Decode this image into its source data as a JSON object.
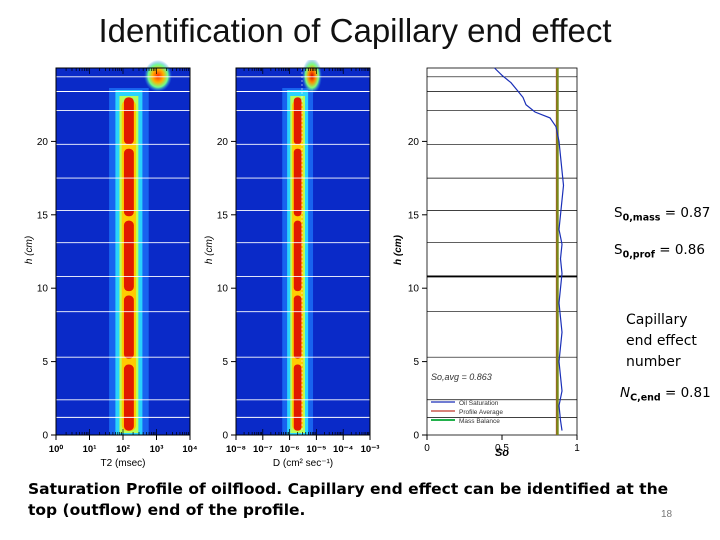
{
  "slide": {
    "title": "Identification of Capillary end effect",
    "caption": "Saturation Profile of oilflood.  Capillary end effect can be identified at the top (outflow) end of the profile.",
    "slide_number": "18"
  },
  "annotations": {
    "s0_mass_label": "S",
    "s0_mass_sub": "0,mass",
    "s0_mass_value": " = 0.87",
    "s0_prof_label": "S",
    "s0_prof_sub": "0,prof",
    "s0_prof_value": " = 0.86",
    "capillary_lines": [
      "Capillary",
      "end effect",
      "number"
    ],
    "nc_label": "N",
    "nc_sub": "C,end",
    "nc_value": " = 0.81"
  },
  "chart_data": [
    {
      "type": "heatmap",
      "xlabel": "T2 (msec)",
      "ylabel": "h (cm)",
      "x_scale": "log",
      "xlim": [
        1,
        10000
      ],
      "ylim": [
        0,
        25
      ],
      "x_tick_labels": [
        "10⁰",
        "10¹",
        "10²",
        "10³",
        "10⁴"
      ],
      "y_tick_labels": [
        "0",
        "5",
        "10",
        "15",
        "20"
      ],
      "y_ticks": [
        0,
        5,
        10,
        15,
        20
      ],
      "peak_center_x": 150,
      "top_peak_center_x": 1200,
      "grid_lines_h": [
        1.2,
        2.4,
        5.3,
        8.4,
        10.8,
        13.1,
        15.3,
        17.5,
        19.8,
        22.1,
        23.4,
        24.4
      ]
    },
    {
      "type": "heatmap",
      "xlabel": "D (cm² sec⁻¹)",
      "ylabel": "h (cm)",
      "x_scale": "log",
      "xlim": [
        -8,
        -3
      ],
      "ylim": [
        0,
        25
      ],
      "x_tick_labels": [
        "10⁻⁸",
        "10⁻⁷",
        "10⁻⁶",
        "10⁻⁵",
        "10⁻⁴",
        "10⁻³"
      ],
      "y_tick_labels": [
        "0",
        "5",
        "10",
        "15",
        "20"
      ],
      "y_ticks": [
        0,
        5,
        10,
        15,
        20
      ],
      "peak_center_x": -5.7,
      "top_peak_center_x": -5.0
    },
    {
      "type": "line",
      "xlabel": "So",
      "ylabel": "h (cm)",
      "xlim": [
        0,
        1
      ],
      "ylim": [
        0,
        25
      ],
      "x_tick_labels": [
        "0",
        "0.5",
        "1"
      ],
      "y_tick_labels": [
        "0",
        "5",
        "10",
        "15",
        "20"
      ],
      "y_ticks": [
        0,
        5,
        10,
        15,
        20
      ],
      "annotation": "So,avg = 0.863",
      "legend": [
        "Oil Saturation",
        "Profile Average",
        "Mass Balance"
      ],
      "legend_position": "bottom-left",
      "colors": {
        "oil_saturation": "#1a2fb8",
        "profile_average": "#c0392b",
        "mass_balance": "#22b14c"
      },
      "profile_average": 0.863,
      "mass_balance": 0.87,
      "series": [
        {
          "name": "Oil Saturation",
          "h": [
            0.3,
            1,
            2,
            3,
            4,
            5,
            6,
            7,
            8,
            9,
            10,
            11,
            12,
            13,
            14,
            15,
            16,
            17,
            18,
            19,
            20,
            21,
            21.6,
            22,
            22.5,
            23,
            23.5,
            24,
            24.5,
            25
          ],
          "x": [
            0.9,
            0.89,
            0.88,
            0.9,
            0.89,
            0.88,
            0.89,
            0.9,
            0.89,
            0.88,
            0.89,
            0.9,
            0.89,
            0.9,
            0.88,
            0.89,
            0.9,
            0.91,
            0.9,
            0.89,
            0.88,
            0.86,
            0.82,
            0.72,
            0.66,
            0.64,
            0.6,
            0.56,
            0.5,
            0.45
          ]
        }
      ]
    }
  ]
}
